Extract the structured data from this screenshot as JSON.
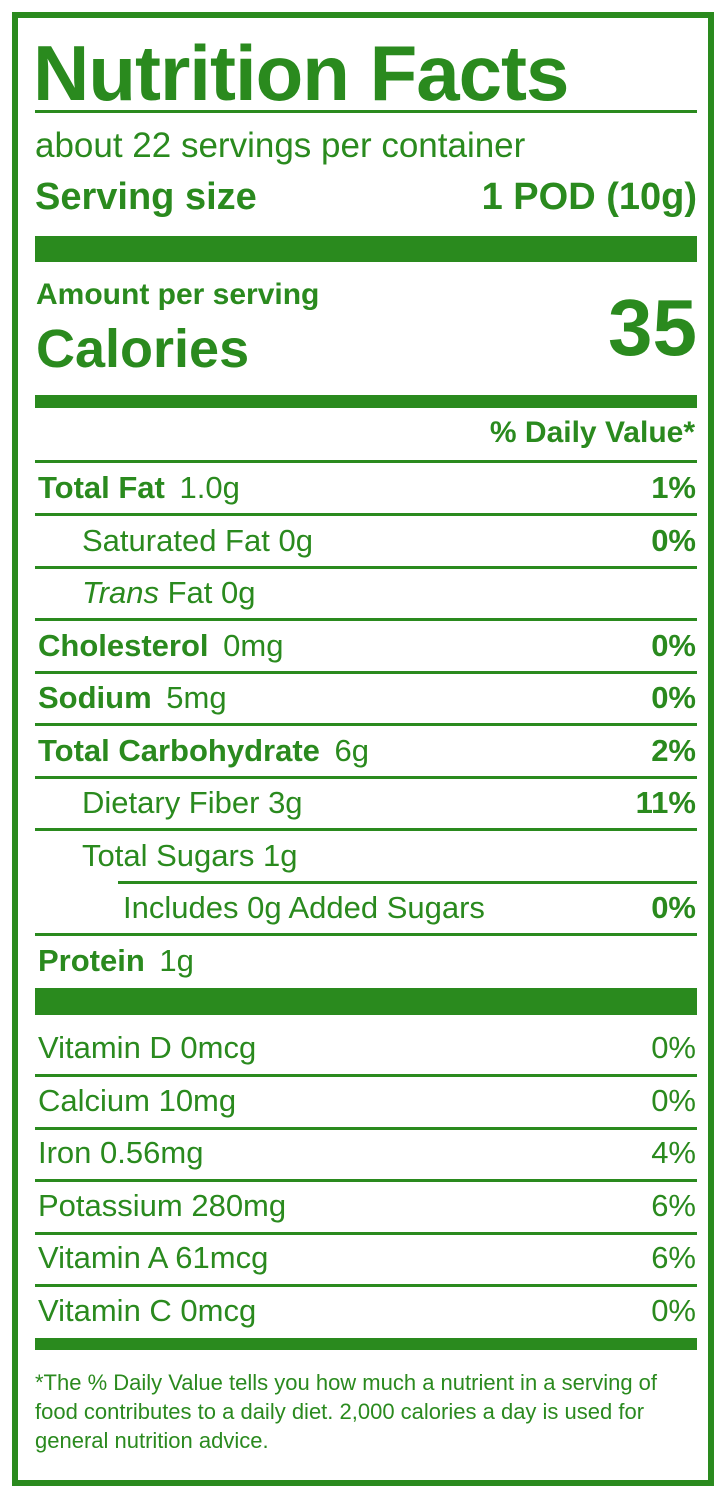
{
  "title": "Nutrition Facts",
  "servings_per_container": "about 22 servings per container",
  "serving_size": {
    "label": "Serving size",
    "value": "1 POD (10g)"
  },
  "amount_per_serving": "Amount per serving",
  "calories": {
    "label": "Calories",
    "value": "35"
  },
  "daily_value_header": "% Daily Value*",
  "nutrients": [
    {
      "name": "Total Fat",
      "amount": "1.0g",
      "dv": "1%",
      "bold": true,
      "indent": 0
    },
    {
      "name": "Saturated Fat",
      "amount": "0g",
      "dv": "0%",
      "bold": false,
      "indent": 1
    },
    {
      "name": "Trans",
      "name_suffix": "Fat",
      "amount": "0g",
      "dv": "",
      "bold": false,
      "indent": 1
    },
    {
      "name": "Cholesterol",
      "amount": "0mg",
      "dv": "0%",
      "bold": true,
      "indent": 0
    },
    {
      "name": "Sodium",
      "amount": "5mg",
      "dv": "0%",
      "bold": true,
      "indent": 0
    },
    {
      "name": "Total Carbohydrate",
      "amount": "6g",
      "dv": "2%",
      "bold": true,
      "indent": 0
    },
    {
      "name": "Dietary Fiber",
      "amount": "3g",
      "dv": "11%",
      "bold": false,
      "indent": 1
    },
    {
      "name": "Total Sugars",
      "amount": "1g",
      "dv": "",
      "bold": false,
      "indent": 1
    },
    {
      "name": "Includes 0g Added Sugars",
      "amount": "",
      "dv": "0%",
      "bold": false,
      "indent": 2
    },
    {
      "name": "Protein",
      "amount": "1g",
      "dv": "",
      "bold": true,
      "indent": 0
    }
  ],
  "vitamins": [
    {
      "label": "Vitamin D 0mcg",
      "dv": "0%"
    },
    {
      "label": "Calcium 10mg",
      "dv": "0%"
    },
    {
      "label": "Iron 0.56mg",
      "dv": "4%"
    },
    {
      "label": "Potassium 280mg",
      "dv": "6%"
    },
    {
      "label": "Vitamin A 61mcg",
      "dv": "6%"
    },
    {
      "label": "Vitamin C 0mcg",
      "dv": "0%"
    }
  ],
  "footnote": "*The % Daily Value tells you how much a nutrient in a serving of food contributes to a daily diet. 2,000 calories a day is used for general nutrition advice.",
  "colors": {
    "ink": "#2a8a1e",
    "background": "#ffffff"
  }
}
